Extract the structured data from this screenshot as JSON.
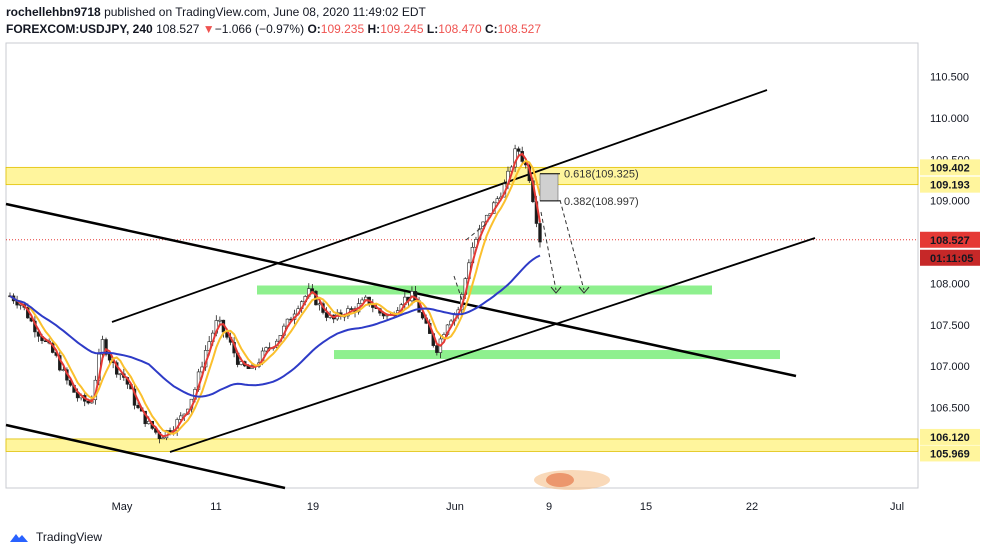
{
  "header": {
    "author": "rochellehbn9718",
    "published_text": "published on TradingView.com, June 08, 2020 11:49:02 EDT",
    "symbol": "FOREXCOM:USDJPY, 240",
    "last": "108.527",
    "arrow": "▼",
    "change": "−1.066 (−0.97%)",
    "o_label": "O:",
    "o_value": "109.235",
    "h_label": "H:",
    "h_value": "109.245",
    "l_label": "L:",
    "l_value": "108.470",
    "c_label": "C:",
    "c_value": "108.527"
  },
  "footer": {
    "brand": "TradingView"
  },
  "colors": {
    "zone_yellow": "#fff59d",
    "zone_green": "#8ef08e",
    "sma_fast": "#e53935",
    "sma_mid": "#fbc02d",
    "sma_slow": "#2e3bc7",
    "price_red": "#e53935",
    "timer_red": "#c62828"
  },
  "chart_data": {
    "type": "candlestick",
    "ylim": [
      105.75,
      110.9
    ],
    "y_ticks": [
      110.5,
      110.0,
      109.5,
      109.0,
      108.5,
      108.0,
      107.5,
      107.0,
      106.5
    ],
    "y_tick_labels": [
      "110.500",
      "110.000",
      "109.500",
      "109.000",
      "108.500",
      "108.000",
      "107.500",
      "107.000",
      "106.500"
    ],
    "x_tick_labels": [
      "May",
      "11",
      "19",
      "Jun",
      "9",
      "15",
      "22",
      "Jul"
    ],
    "price_labels": [
      {
        "text": "109.402",
        "value": 109.402,
        "style": "yellow"
      },
      {
        "text": "109.193",
        "value": 109.193,
        "style": "yellow"
      },
      {
        "text": "108.527",
        "value": 108.527,
        "style": "red"
      },
      {
        "text": "01:11:05",
        "value": 108.3,
        "style": "timer"
      },
      {
        "text": "106.120",
        "value": 106.12,
        "style": "yellow"
      },
      {
        "text": "105.969",
        "value": 105.969,
        "style": "yellow"
      }
    ],
    "fib_labels": [
      {
        "text": "0.618(109.325)",
        "value": 109.325
      },
      {
        "text": "0.382(108.997)",
        "value": 108.997
      }
    ],
    "last_price": 108.527,
    "zones": [
      {
        "name": "resistance",
        "low": 109.193,
        "high": 109.402
      },
      {
        "name": "support",
        "low": 105.969,
        "high": 106.12
      }
    ],
    "close_path": [
      107.85,
      107.75,
      107.5,
      107.3,
      107.1,
      106.8,
      106.6,
      106.55,
      107.3,
      107.0,
      106.85,
      106.5,
      106.3,
      106.15,
      106.25,
      106.4,
      106.7,
      107.2,
      107.55,
      107.3,
      107.0,
      106.95,
      107.15,
      107.3,
      107.5,
      107.75,
      107.9,
      107.7,
      107.55,
      107.65,
      107.7,
      107.8,
      107.65,
      107.6,
      107.8,
      107.85,
      107.5,
      107.2,
      107.55,
      107.7,
      108.4,
      108.7,
      108.95,
      109.2,
      109.65,
      109.35,
      108.53
    ],
    "candle_count": 150,
    "series": [
      {
        "name": "MA fast"
      },
      {
        "name": "MA mid"
      },
      {
        "name": "MA slow"
      }
    ]
  }
}
